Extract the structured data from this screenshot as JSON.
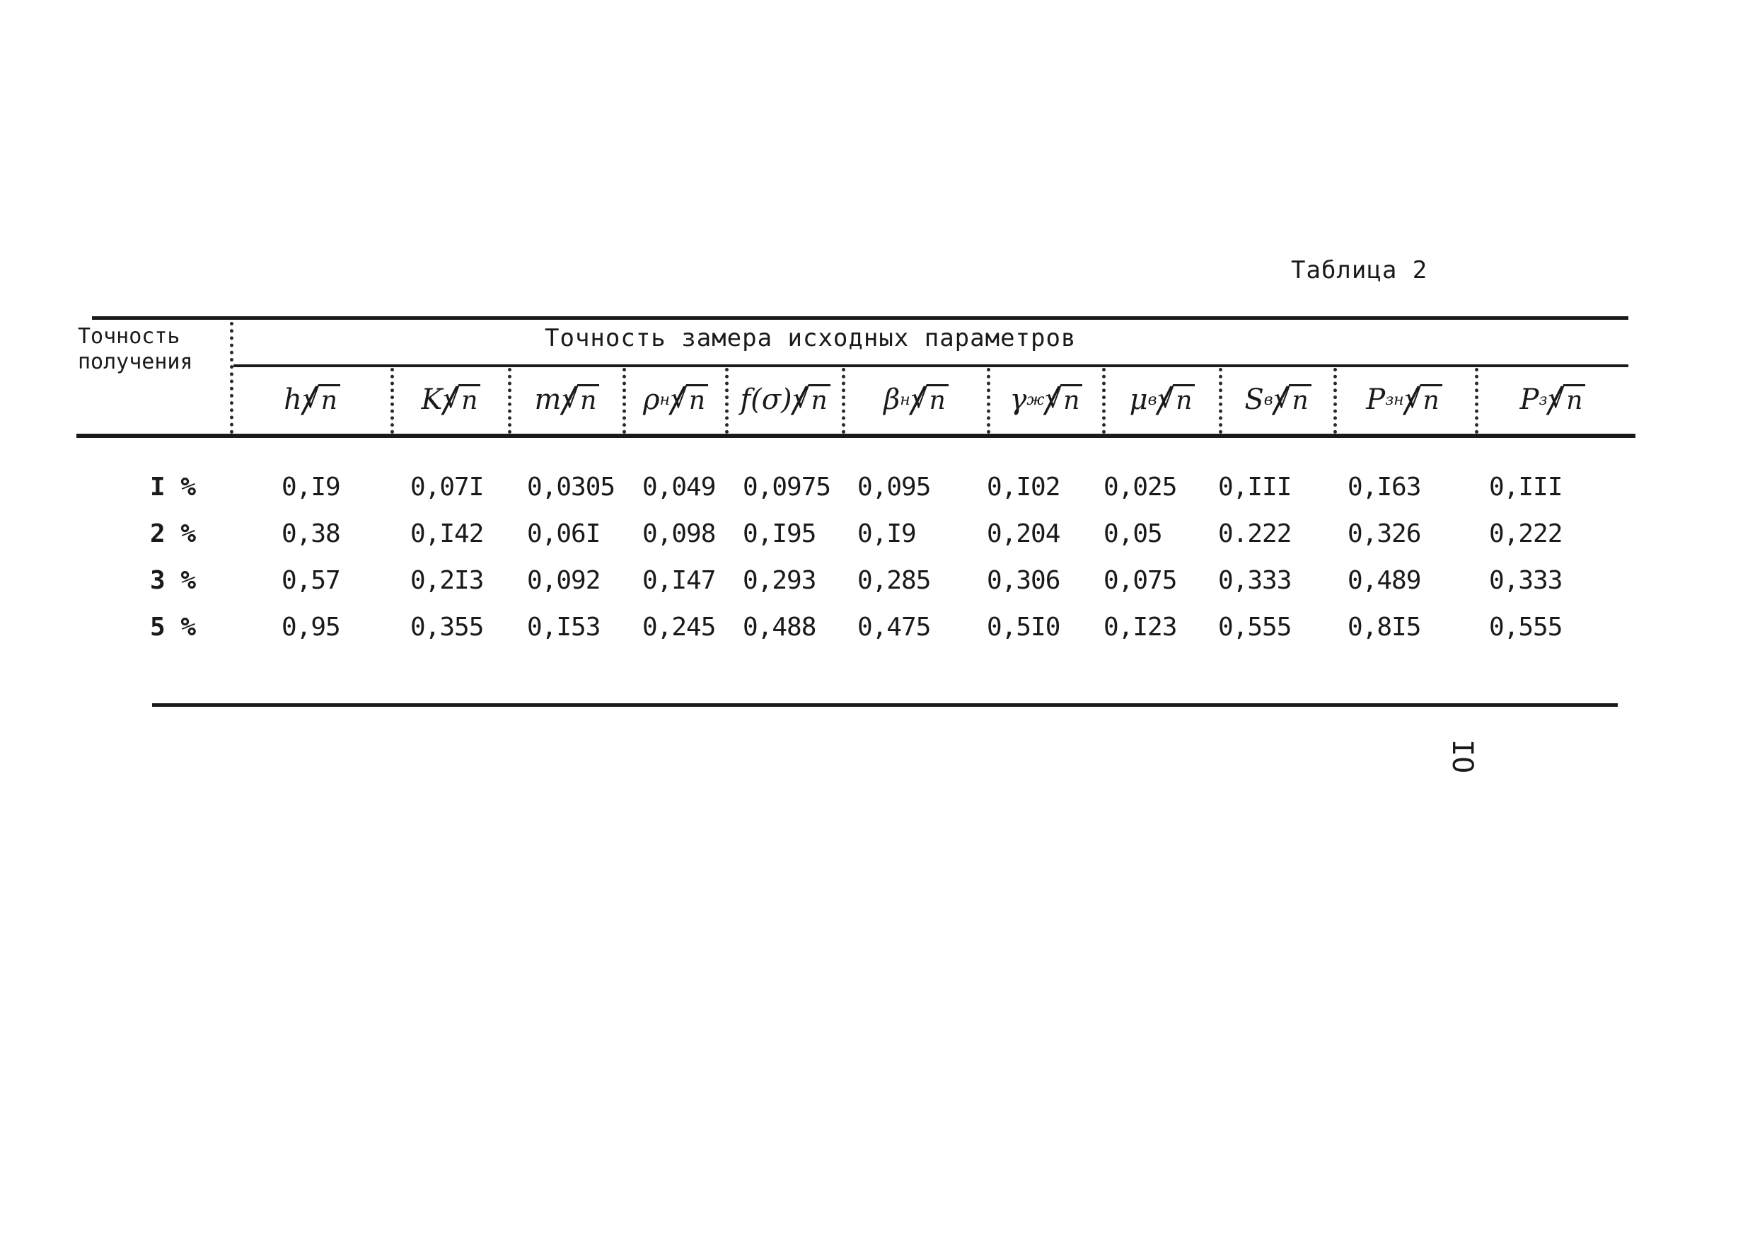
{
  "table": {
    "caption": "Таблица 2",
    "row_header": [
      "Точность",
      "получения"
    ],
    "group_header": "Точность замера исходных параметров",
    "columns": [
      {
        "sym": "h",
        "sub": "",
        "den": "n",
        "root": false
      },
      {
        "sym": "K",
        "sub": "",
        "den": "n",
        "root": true
      },
      {
        "sym": "m",
        "sub": "",
        "den": "n",
        "root": true
      },
      {
        "sym": "ρ",
        "sub": "н",
        "den": "n",
        "root": true
      },
      {
        "sym": "f(σ)",
        "sub": "",
        "den": "n",
        "root": true
      },
      {
        "sym": "β",
        "sub": "н",
        "den": "n",
        "root": true
      },
      {
        "sym": "γ",
        "sub": "ж",
        "den": "n",
        "root": true
      },
      {
        "sym": "μ",
        "sub": "в",
        "den": "n",
        "root": true
      },
      {
        "sym": "S",
        "sub": "в",
        "den": "n",
        "root": true
      },
      {
        "sym": "P",
        "sub": "зн",
        "den": "n",
        "root": true
      },
      {
        "sym": "P",
        "sub": "з",
        "den": "n",
        "root": true
      }
    ],
    "rows": [
      {
        "label": "I %",
        "values": [
          "0,I9",
          "0,07I",
          "0,0305",
          "0,049",
          "0,0975",
          "0,095",
          "0,I02",
          "0,025",
          "0,III",
          "0,I63",
          "0,III"
        ]
      },
      {
        "label": "2 %",
        "values": [
          "0,38",
          "0,I42",
          "0,06I",
          "0,098",
          "0,I95",
          "0,I9",
          "0,204",
          "0,05",
          "0.222",
          "0,326",
          "0,222"
        ]
      },
      {
        "label": "3 %",
        "values": [
          "0,57",
          "0,2I3",
          "0,092",
          "0,I47",
          "0,293",
          "0,285",
          "0,306",
          "0,075",
          "0,333",
          "0,489",
          "0,333"
        ]
      },
      {
        "label": "5 %",
        "values": [
          "0,95",
          "0,355",
          "0,I53",
          "0,245",
          "0,488",
          "0,475",
          "0,5I0",
          "0,I23",
          "0,555",
          "0,8I5",
          "0,555"
        ]
      }
    ]
  },
  "page_number": "IO"
}
